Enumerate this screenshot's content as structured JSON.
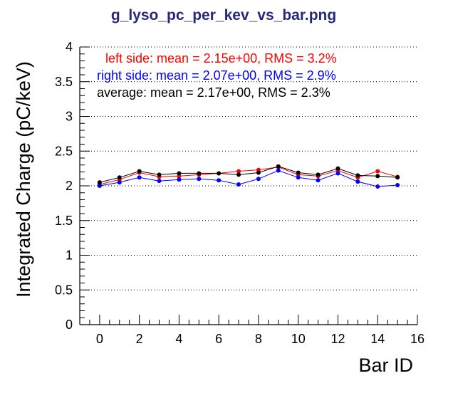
{
  "chart_data": {
    "type": "line",
    "title": "g_lyso_pc_per_kev_vs_bar.png",
    "xlabel": "Bar ID",
    "ylabel": "Integrated Charge (pC/keV)",
    "xlim": [
      -1,
      16
    ],
    "ylim": [
      0,
      4
    ],
    "x_ticks": [
      "0",
      "2",
      "4",
      "6",
      "8",
      "10",
      "12",
      "14",
      "16"
    ],
    "y_ticks": [
      "0",
      "0.5",
      "1",
      "1.5",
      "2",
      "2.5",
      "3",
      "3.5",
      "4"
    ],
    "grid": "horizontal dotted",
    "x": [
      0,
      1,
      2,
      3,
      4,
      5,
      6,
      7,
      8,
      9,
      10,
      11,
      12,
      13,
      14,
      15
    ],
    "series": [
      {
        "color": "#ff0000",
        "values": [
          2.02,
          2.09,
          2.19,
          2.13,
          2.14,
          2.16,
          2.18,
          2.21,
          2.23,
          2.27,
          2.16,
          2.14,
          2.22,
          2.12,
          2.21,
          2.13
        ]
      },
      {
        "color": "#0000ff",
        "values": [
          2.0,
          2.05,
          2.12,
          2.07,
          2.09,
          2.1,
          2.08,
          2.02,
          2.1,
          2.22,
          2.12,
          2.08,
          2.18,
          2.06,
          1.99,
          2.01
        ]
      },
      {
        "color": "#000000",
        "values": [
          2.05,
          2.12,
          2.21,
          2.16,
          2.18,
          2.18,
          2.18,
          2.16,
          2.19,
          2.28,
          2.19,
          2.16,
          2.25,
          2.15,
          2.14,
          2.12
        ]
      }
    ],
    "annotations": [
      {
        "text": "left side:   mean = 2.15e+00, RMS = 3.2%",
        "color": "#ff0000"
      },
      {
        "text": "right side:   mean = 2.07e+00, RMS = 2.9%",
        "color": "#0000ff"
      },
      {
        "text": "average:   mean = 2.17e+00, RMS = 2.3%",
        "color": "#000000"
      }
    ]
  }
}
